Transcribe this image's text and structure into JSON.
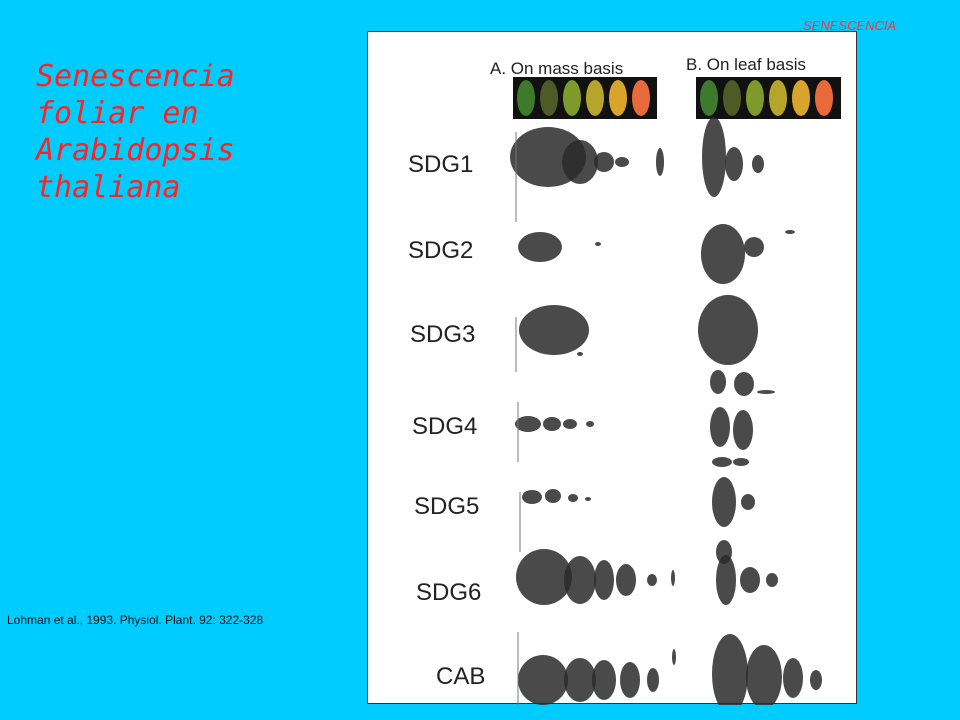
{
  "header": {
    "label": "SENESCENCIA"
  },
  "slide": {
    "title_lines": [
      "Senescencia",
      "foliar en",
      "Arabidopsis",
      "thaliana"
    ],
    "citation": "Lohman et al., 1993. Physiol. Plant. 92: 322-328"
  },
  "figure": {
    "panel_a_title": "A. On mass basis",
    "panel_b_title": "B. On leaf basis",
    "genes": [
      "SDG1",
      "SDG2",
      "SDG3",
      "SDG4",
      "SDG5",
      "SDG6",
      "CAB"
    ],
    "leaf_colors": {
      "panel_a": [
        "#3e7a2c",
        "#4f5a26",
        "#7e9a2a",
        "#b6a52a",
        "#d9a42a",
        "#e86a3a"
      ],
      "panel_b": [
        "#3e7a2c",
        "#4f5a26",
        "#7e9a2a",
        "#b6a52a",
        "#d9a42a",
        "#e86a3a"
      ]
    },
    "band_color": "#2a2a2a"
  }
}
